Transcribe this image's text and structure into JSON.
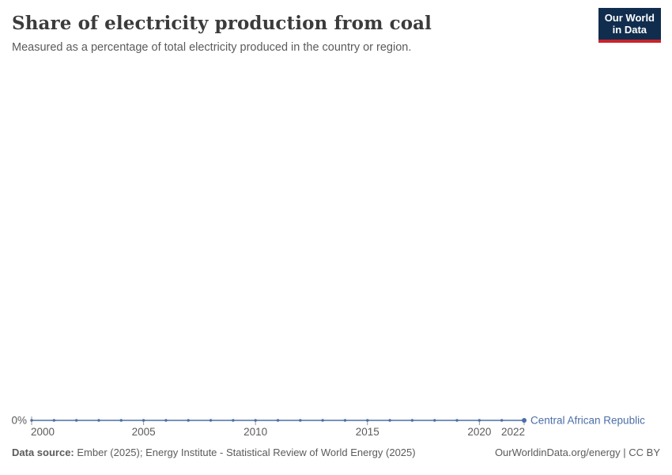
{
  "header": {
    "title": "Share of electricity production from coal",
    "subtitle": "Measured as a percentage of total electricity produced in the country or region.",
    "logo": {
      "line1": "Our World",
      "line2": "in Data"
    }
  },
  "chart_data": {
    "type": "line",
    "title": "Share of electricity production from coal",
    "x": [
      2000,
      2001,
      2002,
      2003,
      2004,
      2005,
      2006,
      2007,
      2008,
      2009,
      2010,
      2011,
      2012,
      2013,
      2014,
      2015,
      2016,
      2017,
      2018,
      2019,
      2020,
      2021,
      2022
    ],
    "series": [
      {
        "name": "Central African Republic",
        "color": "#4C6EA8",
        "values": [
          0,
          0,
          0,
          0,
          0,
          0,
          0,
          0,
          0,
          0,
          0,
          0,
          0,
          0,
          0,
          0,
          0,
          0,
          0,
          0,
          0,
          0,
          0
        ]
      }
    ],
    "x_ticks": [
      2000,
      2005,
      2010,
      2015,
      2020,
      2022
    ],
    "y_ticks": [
      {
        "value": 0,
        "label": "0%"
      }
    ],
    "unit": "%",
    "ylim": [
      0,
      1
    ],
    "grid": false,
    "legend_position": "end-of-line"
  },
  "colors": {
    "line": "#4C6EA8",
    "logo_bg": "#102D4E",
    "logo_accent": "#C8232C",
    "title": "#3b3b3b",
    "text_gray": "#5b5b5b",
    "tick": "#999999"
  },
  "footer": {
    "data_source_label": "Data source:",
    "data_source_text": "Ember (2025); Energy Institute - Statistical Review of World Energy (2025)",
    "link_text": "OurWorldinData.org/energy | CC BY"
  }
}
